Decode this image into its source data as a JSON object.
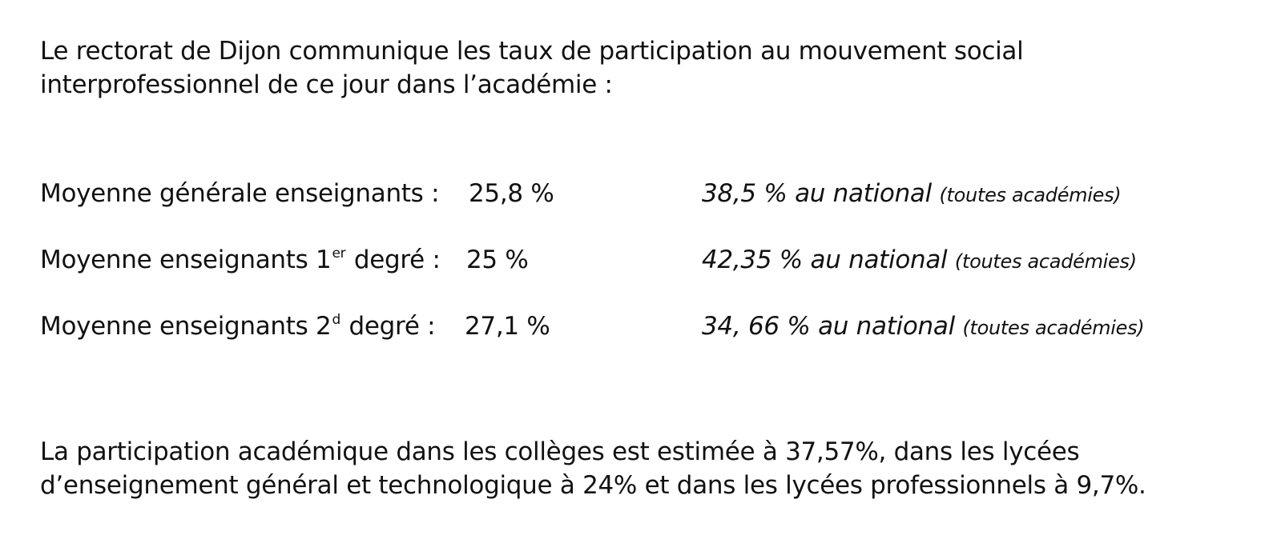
{
  "intro": {
    "line1": "Le rectorat de Dijon communique les taux de participation au mouvement social",
    "line2": "interprofessionnel de ce jour dans l’académie :"
  },
  "rows": [
    {
      "label_before": "Moyenne générale enseignants :",
      "label_sup": "",
      "label_after": "",
      "value": "25,8 %",
      "national": "38,5 % au national",
      "note": "(toutes académies)"
    },
    {
      "label_before": "Moyenne enseignants 1",
      "label_sup": "er",
      "label_after": " degré :",
      "value": "25 %",
      "national": "42,35 % au national",
      "note": "(toutes académies)"
    },
    {
      "label_before": "Moyenne enseignants 2",
      "label_sup": "d",
      "label_after": " degré :",
      "value": "27,1 %",
      "national": "34, 66 % au national",
      "note": "(toutes académies)"
    }
  ],
  "outro": {
    "line1": "La participation académique dans les collèges est estimée à 37,57%, dans les lycées",
    "line2": "d’enseignement général et technologique à 24% et dans les lycées professionnels à 9,7%."
  }
}
